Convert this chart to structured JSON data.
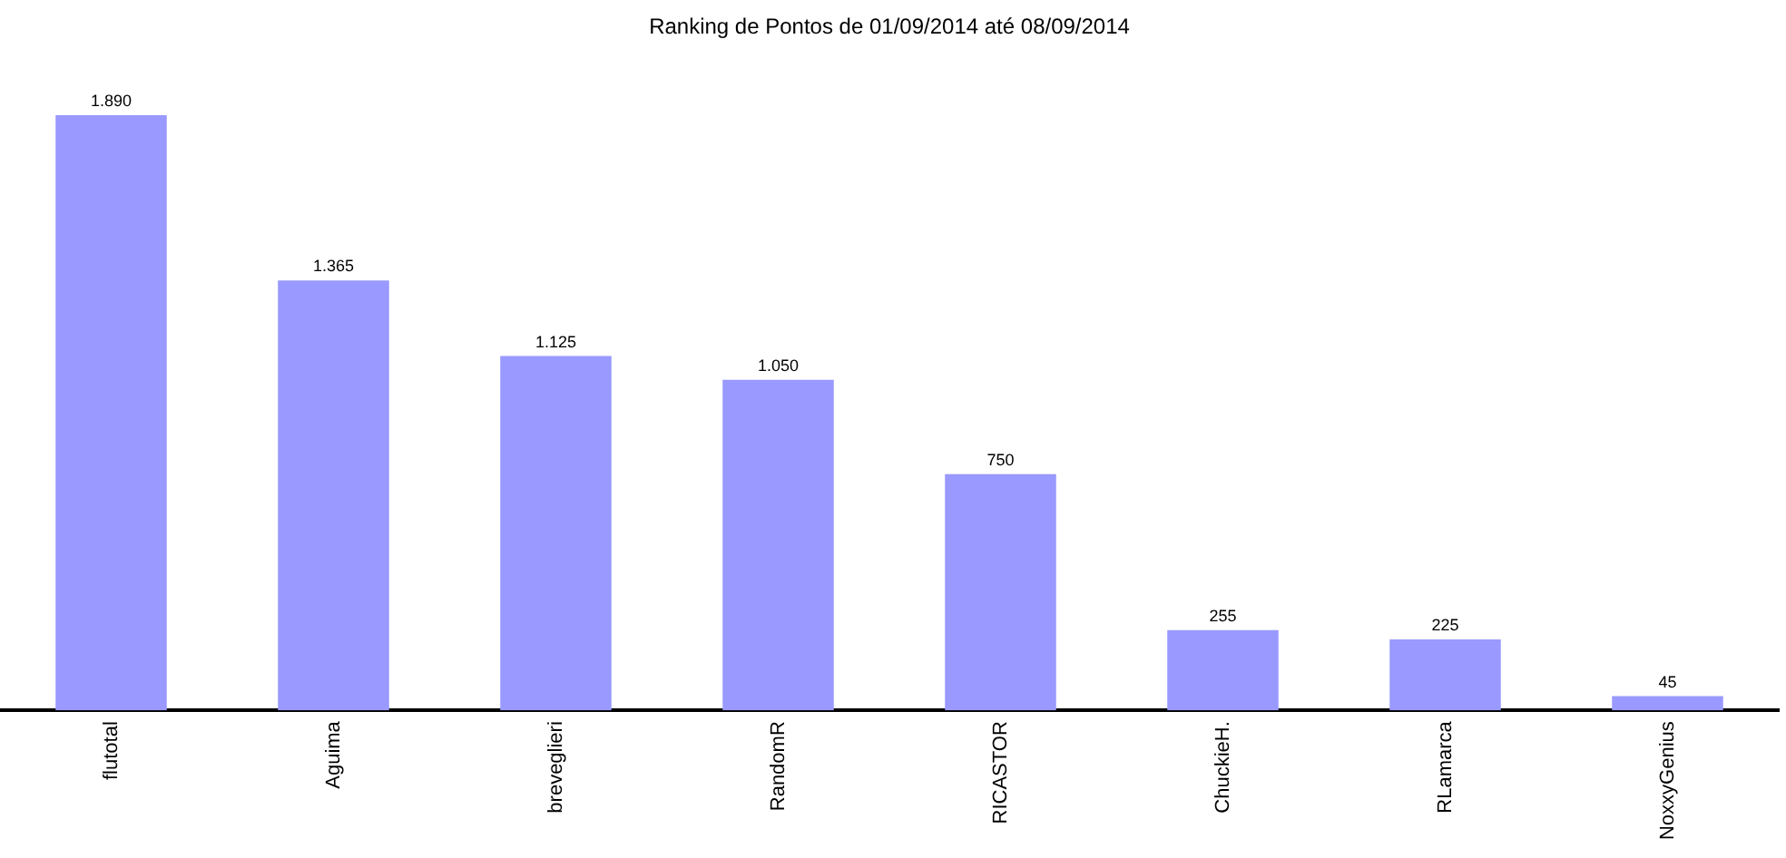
{
  "chart_data": {
    "type": "bar",
    "title": "Ranking de Pontos de 01/09/2014 até 08/09/2014",
    "categories": [
      "flutotal",
      "Aguima",
      "breveglieri",
      "RandomR",
      "RICASTOR",
      "ChuckieH.",
      "RLamarca",
      "NoxxyGenius"
    ],
    "values": [
      1890,
      1365,
      1125,
      1050,
      750,
      255,
      225,
      45
    ],
    "value_labels": [
      "1.890",
      "1.365",
      "1.125",
      "1.050",
      "750",
      "255",
      "225",
      "45"
    ],
    "color": "#9999ff",
    "grid": false,
    "legend": false
  }
}
